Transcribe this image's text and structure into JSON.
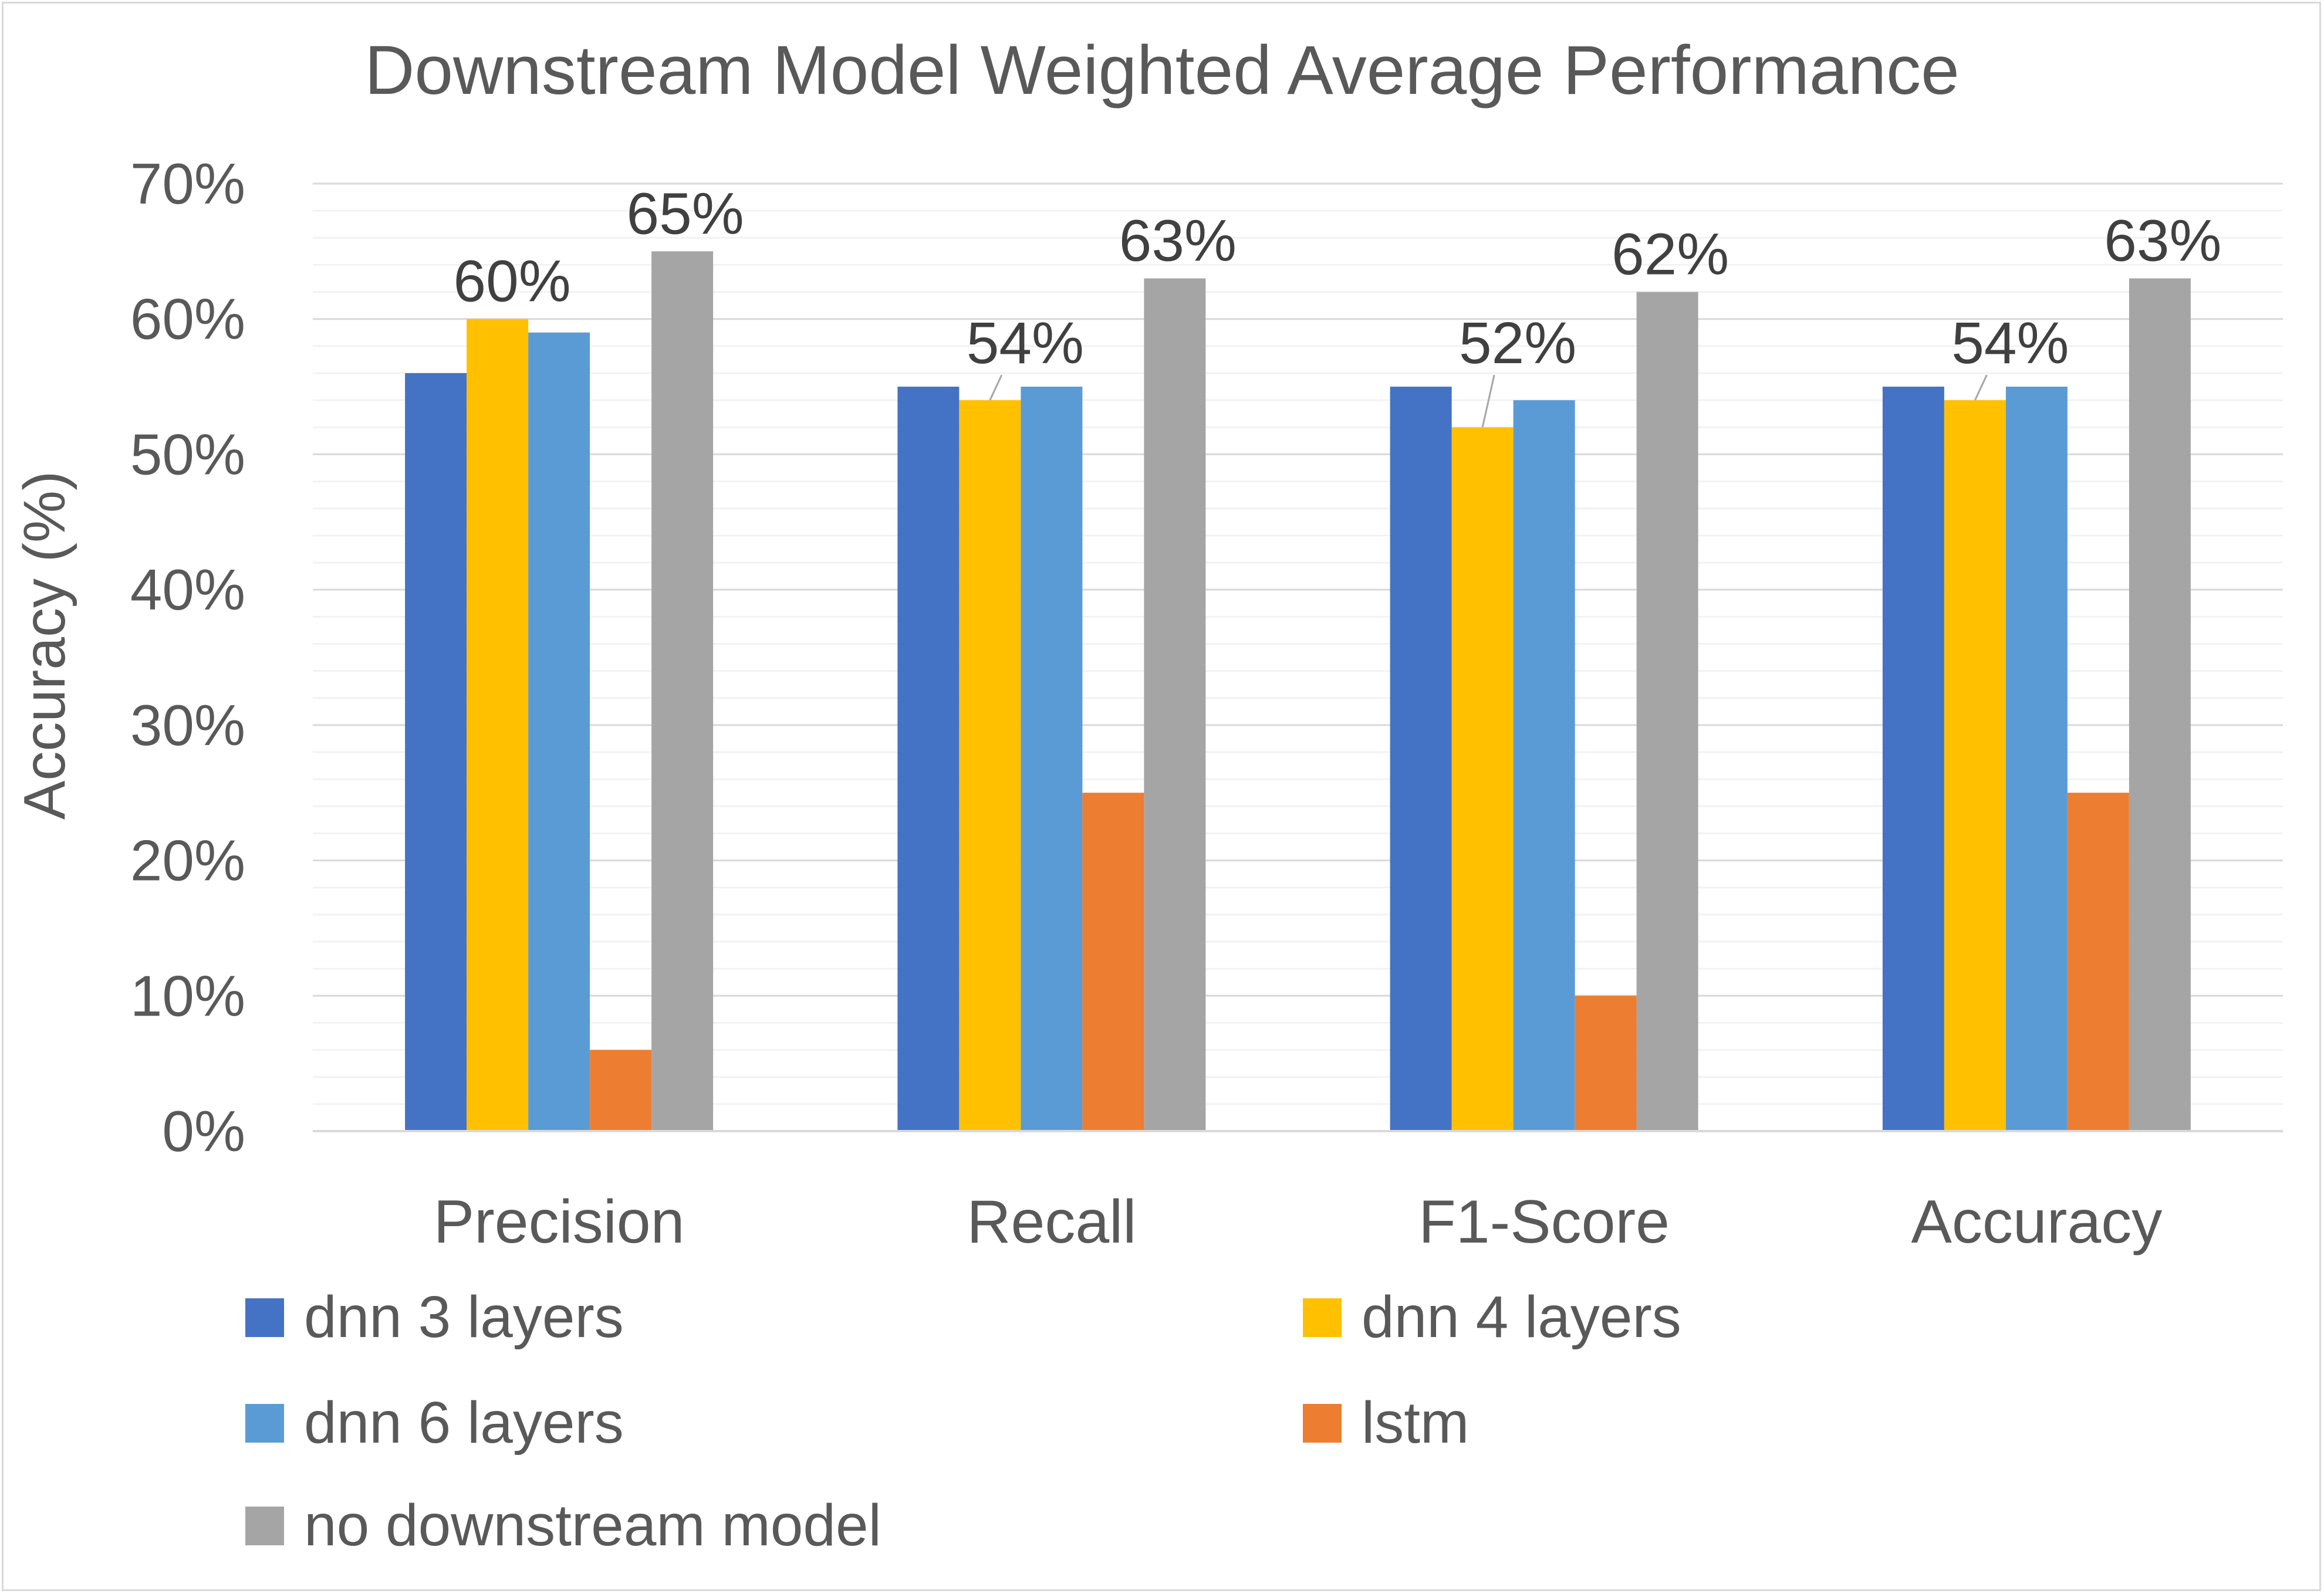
{
  "chart_data": {
    "type": "bar",
    "title": "Downstream Model Weighted Average  Performance",
    "ylabel": "Accuracy (%)",
    "ylim": [
      0,
      70
    ],
    "yticks": [
      "0%",
      "10%",
      "20%",
      "30%",
      "40%",
      "50%",
      "60%",
      "70%"
    ],
    "grid": true,
    "legend_position": "bottom",
    "categories": [
      "Precision",
      "Recall",
      "F1-Score",
      "Accuracy"
    ],
    "series": [
      {
        "name": "dnn 3 layers",
        "color": "#4472c4",
        "values": [
          56,
          55,
          55,
          55
        ]
      },
      {
        "name": "dnn 4 layers",
        "color": "#ffc000",
        "values": [
          60,
          54,
          52,
          54
        ]
      },
      {
        "name": "dnn 6 layers",
        "color": "#5b9bd5",
        "values": [
          59,
          55,
          54,
          55
        ]
      },
      {
        "name": "lstm",
        "color": "#ed7d31",
        "values": [
          6,
          25,
          10,
          25
        ]
      },
      {
        "name": "no downstream model",
        "color": "#a5a5a5",
        "values": [
          65,
          63,
          62,
          63
        ]
      }
    ],
    "data_labels": [
      {
        "series": 1,
        "category": 0,
        "text": "60%"
      },
      {
        "series": 4,
        "category": 0,
        "text": "65%"
      },
      {
        "series": 1,
        "category": 1,
        "text": "54%"
      },
      {
        "series": 4,
        "category": 1,
        "text": "63%"
      },
      {
        "series": 1,
        "category": 2,
        "text": "52%"
      },
      {
        "series": 4,
        "category": 2,
        "text": "62%"
      },
      {
        "series": 1,
        "category": 3,
        "text": "54%"
      },
      {
        "series": 4,
        "category": 3,
        "text": "63%"
      }
    ]
  }
}
